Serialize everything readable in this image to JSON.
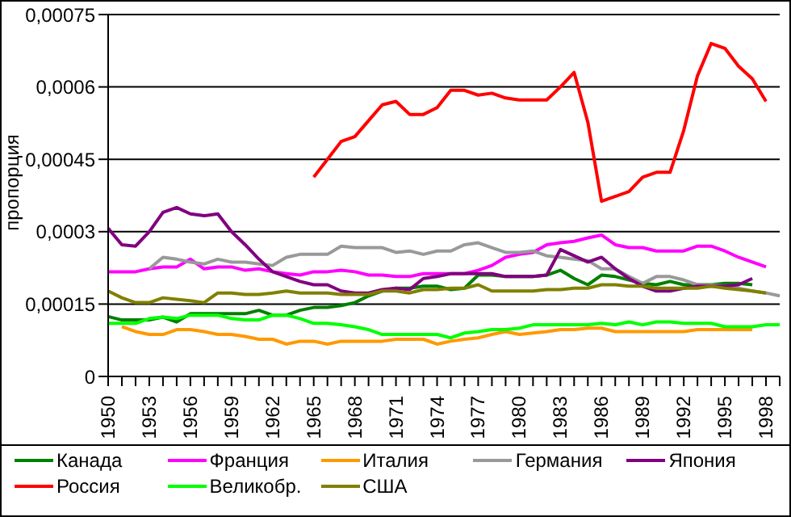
{
  "chart_data": {
    "type": "line",
    "ylabel": "пропорция",
    "categories": [
      "1950",
      null,
      null,
      "1953",
      null,
      null,
      "1956",
      null,
      null,
      "1959",
      null,
      null,
      "1962",
      null,
      null,
      "1965",
      null,
      null,
      "1968",
      null,
      null,
      "1971",
      null,
      null,
      "1974",
      null,
      null,
      "1977",
      null,
      null,
      "1980",
      null,
      null,
      "1983",
      null,
      null,
      "1986",
      null,
      null,
      "1989",
      null,
      null,
      "1992",
      null,
      null,
      "1995",
      null,
      null,
      "1998",
      null
    ],
    "ylim": [
      0,
      0.00075
    ],
    "yticks": [
      {
        "value": 0,
        "label": "0"
      },
      {
        "value": 0.00015,
        "label": "0,00015"
      },
      {
        "value": 0.0003,
        "label": "0,0003"
      },
      {
        "value": 0.00045,
        "label": "0,00045"
      },
      {
        "value": 0.0006,
        "label": "0,0006"
      },
      {
        "value": 0.00075,
        "label": "0,00075"
      }
    ],
    "grid": "y",
    "legend": "bottom",
    "marker": "none",
    "line_style": "solid",
    "series": [
      {
        "name": "Канада",
        "color": "#008000",
        "values": [
          0.000124,
          0.000117,
          0.000117,
          0.000117,
          0.000123,
          0.000113,
          0.00013,
          0.00013,
          0.00013,
          0.00013,
          0.00013,
          0.000137,
          0.000127,
          0.000127,
          0.000137,
          0.000143,
          0.000143,
          0.000147,
          0.000153,
          0.000167,
          0.000177,
          0.000183,
          0.000183,
          0.000187,
          0.000187,
          0.00018,
          0.000183,
          0.00021,
          0.00021,
          0.000207,
          0.000207,
          0.000207,
          0.00021,
          0.00022,
          0.000203,
          0.00019,
          0.00021,
          0.000207,
          0.0002,
          0.000193,
          0.00019,
          0.000197,
          0.00019,
          0.00019,
          0.00019,
          0.000193,
          0.000193,
          0.00019,
          null,
          null
        ]
      },
      {
        "name": "Франция",
        "color": "#ff00ff",
        "values": [
          0.000217,
          0.000217,
          0.000217,
          0.000223,
          0.000227,
          0.000227,
          0.000243,
          0.000223,
          0.000227,
          0.000227,
          0.00022,
          0.000223,
          0.000217,
          0.000213,
          0.00021,
          0.000217,
          0.000217,
          0.00022,
          0.000217,
          0.00021,
          0.00021,
          0.000207,
          0.000207,
          0.000213,
          0.000213,
          0.000213,
          0.000213,
          0.00022,
          0.00023,
          0.000247,
          0.000253,
          0.000257,
          0.000273,
          0.000277,
          0.00028,
          0.000287,
          0.000293,
          0.000273,
          0.000267,
          0.000267,
          0.00026,
          0.00026,
          0.00026,
          0.00027,
          0.00027,
          0.00026,
          0.000247,
          0.000237,
          0.000227,
          null
        ]
      },
      {
        "name": "Италия",
        "color": "#ff9900",
        "values": [
          null,
          0.000103,
          9.3e-05,
          8.7e-05,
          8.7e-05,
          9.7e-05,
          9.7e-05,
          9.3e-05,
          8.7e-05,
          8.7e-05,
          8.3e-05,
          7.7e-05,
          7.7e-05,
          6.7e-05,
          7.3e-05,
          7.3e-05,
          6.7e-05,
          7.3e-05,
          7.3e-05,
          7.3e-05,
          7.3e-05,
          7.7e-05,
          7.7e-05,
          7.7e-05,
          6.7e-05,
          7.3e-05,
          7.7e-05,
          8e-05,
          8.7e-05,
          9.3e-05,
          8.7e-05,
          9e-05,
          9.3e-05,
          9.7e-05,
          9.7e-05,
          0.0001,
          0.0001,
          9.3e-05,
          9.3e-05,
          9.3e-05,
          9.3e-05,
          9.3e-05,
          9.3e-05,
          9.7e-05,
          9.7e-05,
          9.7e-05,
          9.7e-05,
          9.7e-05,
          null,
          null
        ]
      },
      {
        "name": "Германия",
        "color": "#999999",
        "values": [
          null,
          null,
          null,
          0.000223,
          0.000247,
          0.000243,
          0.000237,
          0.000233,
          0.000243,
          0.000237,
          0.000237,
          0.000233,
          0.00023,
          0.000247,
          0.000253,
          0.000253,
          0.000253,
          0.00027,
          0.000267,
          0.000267,
          0.000267,
          0.000257,
          0.00026,
          0.000253,
          0.00026,
          0.00026,
          0.000273,
          0.000277,
          0.000267,
          0.000257,
          0.000257,
          0.00026,
          0.00025,
          0.000247,
          0.000243,
          0.00024,
          0.000223,
          0.000223,
          0.000207,
          0.000193,
          0.000207,
          0.000207,
          0.0002,
          0.00019,
          0.00019,
          0.000187,
          0.000183,
          0.000177,
          0.000173,
          0.000167
        ]
      },
      {
        "name": "Япония",
        "color": "#800080",
        "values": [
          0.000307,
          0.000273,
          0.00027,
          0.0003,
          0.00034,
          0.00035,
          0.000337,
          0.000333,
          0.000337,
          0.0003,
          0.000273,
          0.000243,
          0.000217,
          0.000207,
          0.000197,
          0.00019,
          0.00019,
          0.000177,
          0.000173,
          0.000173,
          0.00018,
          0.000183,
          0.00018,
          0.000203,
          0.000207,
          0.000213,
          0.000213,
          0.000213,
          0.000213,
          0.000207,
          0.000207,
          0.000207,
          0.00021,
          0.000263,
          0.00025,
          0.000237,
          0.000247,
          0.000223,
          0.000203,
          0.000187,
          0.000177,
          0.000177,
          0.000183,
          0.000187,
          0.000187,
          0.000187,
          0.00019,
          0.000203,
          null,
          null
        ]
      },
      {
        "name": "Россия",
        "color": "#ff0000",
        "values": [
          null,
          null,
          null,
          null,
          null,
          null,
          null,
          null,
          null,
          null,
          null,
          null,
          null,
          null,
          null,
          0.000413,
          0.00045,
          0.000487,
          0.000497,
          0.00053,
          0.000563,
          0.00057,
          0.000543,
          0.000543,
          0.000557,
          0.000593,
          0.000593,
          0.000583,
          0.000587,
          0.000577,
          0.000573,
          0.000573,
          0.000573,
          0.0006,
          0.00063,
          0.000527,
          0.000363,
          0.000373,
          0.000383,
          0.000413,
          0.000423,
          0.000423,
          0.00051,
          0.000623,
          0.00069,
          0.00068,
          0.000643,
          0.000617,
          0.00057,
          null
        ]
      },
      {
        "name": "Великобр.",
        "color": "#00ff00",
        "values": [
          0.00011,
          0.00011,
          0.00011,
          0.00012,
          0.000123,
          0.00012,
          0.000127,
          0.000127,
          0.000127,
          0.00012,
          0.000117,
          0.000117,
          0.000127,
          0.000127,
          0.00012,
          0.00011,
          0.00011,
          0.000107,
          0.000103,
          9.7e-05,
          8.7e-05,
          8.7e-05,
          8.7e-05,
          8.7e-05,
          8.7e-05,
          8e-05,
          9e-05,
          9.3e-05,
          9.7e-05,
          9.7e-05,
          0.0001,
          0.000107,
          0.000107,
          0.000107,
          0.000107,
          0.000107,
          0.00011,
          0.000107,
          0.000113,
          0.000107,
          0.000113,
          0.000113,
          0.00011,
          0.00011,
          0.00011,
          0.000103,
          0.000103,
          0.000103,
          0.000107,
          0.000107
        ]
      },
      {
        "name": "США",
        "color": "#808000",
        "values": [
          0.000177,
          0.000163,
          0.000153,
          0.000153,
          0.000163,
          0.00016,
          0.000157,
          0.000153,
          0.000173,
          0.000173,
          0.00017,
          0.00017,
          0.000173,
          0.000177,
          0.000173,
          0.000173,
          0.000173,
          0.00017,
          0.00017,
          0.00017,
          0.000177,
          0.000177,
          0.000173,
          0.00018,
          0.00018,
          0.000183,
          0.000183,
          0.00019,
          0.000177,
          0.000177,
          0.000177,
          0.000177,
          0.00018,
          0.00018,
          0.000183,
          0.000183,
          0.00019,
          0.00019,
          0.000187,
          0.000187,
          0.000183,
          0.000183,
          0.000183,
          0.000183,
          0.000187,
          0.000183,
          0.00018,
          0.000177,
          0.000173,
          null
        ]
      }
    ]
  }
}
